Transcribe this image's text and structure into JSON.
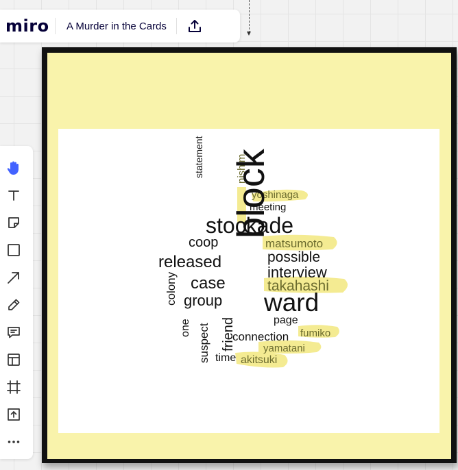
{
  "app": {
    "logo": "miro",
    "board_title": "A Murder in the Cards",
    "export_icon": "upload-icon"
  },
  "toolbar": {
    "tools": [
      {
        "name": "hand-icon",
        "active": true
      },
      {
        "name": "text-icon"
      },
      {
        "name": "sticky-note-icon"
      },
      {
        "name": "shape-icon"
      },
      {
        "name": "arrow-icon"
      },
      {
        "name": "pen-icon"
      },
      {
        "name": "comment-icon"
      },
      {
        "name": "template-icon"
      },
      {
        "name": "frame-icon"
      },
      {
        "name": "upload-icon"
      },
      {
        "name": "more-icon"
      }
    ]
  },
  "colors": {
    "frame": "#111111",
    "sticky": "#f9f3ab",
    "highlight": "#f4eb92",
    "highlighted_text": "#6b6b2e",
    "accent": "#4262ff",
    "ink": "#050038"
  },
  "wordcloud": {
    "words": [
      {
        "text": "yoshinaga",
        "highlighted": true
      },
      {
        "text": "nishim",
        "highlighted": true
      },
      {
        "text": "statement"
      },
      {
        "text": "meeting"
      },
      {
        "text": "stockade"
      },
      {
        "text": "coop"
      },
      {
        "text": "matsumoto",
        "highlighted": true
      },
      {
        "text": "released"
      },
      {
        "text": "block"
      },
      {
        "text": "possible"
      },
      {
        "text": "interview"
      },
      {
        "text": "colony"
      },
      {
        "text": "case"
      },
      {
        "text": "takahashi",
        "highlighted": true
      },
      {
        "text": "group"
      },
      {
        "text": "ward"
      },
      {
        "text": "page"
      },
      {
        "text": "one"
      },
      {
        "text": "suspect"
      },
      {
        "text": "friend"
      },
      {
        "text": "connection"
      },
      {
        "text": "fumiko",
        "highlighted": true
      },
      {
        "text": "yamatani",
        "highlighted": true
      },
      {
        "text": "time"
      },
      {
        "text": "akitsuki",
        "highlighted": true
      }
    ]
  }
}
